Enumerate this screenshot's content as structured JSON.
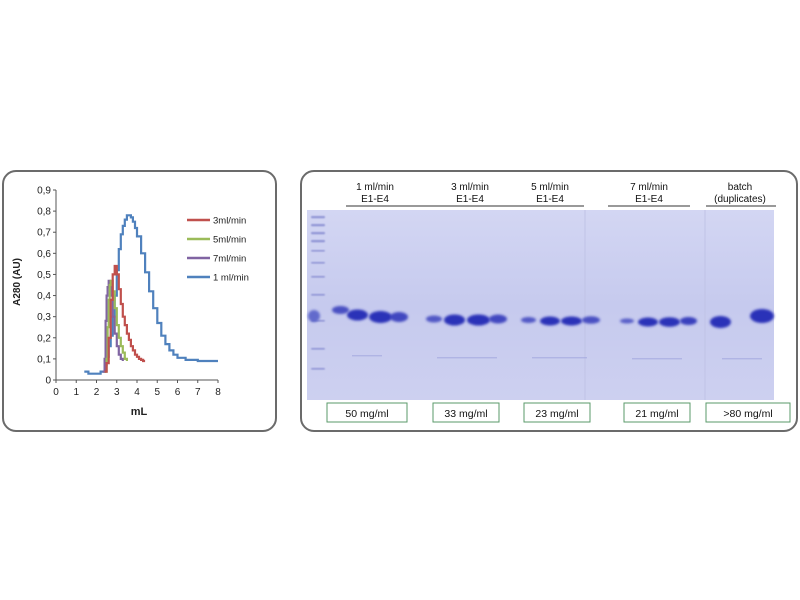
{
  "chart_data": {
    "type": "line",
    "title": "",
    "xlabel": "mL",
    "ylabel": "A280 (AU)",
    "xlim": [
      0,
      8
    ],
    "ylim": [
      0,
      0.9
    ],
    "x_ticks": [
      "0",
      "1",
      "2",
      "3",
      "4",
      "5",
      "6",
      "7",
      "8"
    ],
    "y_ticks": [
      "0",
      "0,1",
      "0,2",
      "0,3",
      "0,4",
      "0,5",
      "0,6",
      "0,7",
      "0,8",
      "0,9"
    ],
    "grid": false,
    "legend_position": "right",
    "series": [
      {
        "name": "3ml/min",
        "color": "#c0504d",
        "points": [
          [
            2.4,
            0.04
          ],
          [
            2.5,
            0.08
          ],
          [
            2.6,
            0.2
          ],
          [
            2.7,
            0.38
          ],
          [
            2.8,
            0.5
          ],
          [
            2.9,
            0.54
          ],
          [
            3.0,
            0.5
          ],
          [
            3.1,
            0.43
          ],
          [
            3.2,
            0.36
          ],
          [
            3.3,
            0.3
          ],
          [
            3.4,
            0.26
          ],
          [
            3.5,
            0.22
          ],
          [
            3.6,
            0.19
          ],
          [
            3.7,
            0.16
          ],
          [
            3.8,
            0.14
          ],
          [
            3.9,
            0.12
          ],
          [
            4.0,
            0.11
          ],
          [
            4.1,
            0.1
          ],
          [
            4.2,
            0.095
          ],
          [
            4.3,
            0.09
          ],
          [
            4.4,
            0.09
          ]
        ]
      },
      {
        "name": "5ml/min",
        "color": "#9bbb59",
        "points": [
          [
            2.4,
            0.04
          ],
          [
            2.5,
            0.1
          ],
          [
            2.55,
            0.25
          ],
          [
            2.6,
            0.38
          ],
          [
            2.65,
            0.45
          ],
          [
            2.7,
            0.47
          ],
          [
            2.8,
            0.42
          ],
          [
            2.9,
            0.34
          ],
          [
            3.0,
            0.26
          ],
          [
            3.1,
            0.2
          ],
          [
            3.2,
            0.16
          ],
          [
            3.3,
            0.13
          ],
          [
            3.4,
            0.1
          ],
          [
            3.5,
            0.09
          ]
        ]
      },
      {
        "name": "7ml/min",
        "color": "#8064a2",
        "points": [
          [
            2.3,
            0.04
          ],
          [
            2.4,
            0.1
          ],
          [
            2.45,
            0.28
          ],
          [
            2.5,
            0.4
          ],
          [
            2.55,
            0.44
          ],
          [
            2.6,
            0.47
          ],
          [
            2.65,
            0.44
          ],
          [
            2.7,
            0.4
          ],
          [
            2.8,
            0.3
          ],
          [
            2.9,
            0.22
          ],
          [
            3.0,
            0.16
          ],
          [
            3.1,
            0.12
          ],
          [
            3.2,
            0.1
          ],
          [
            3.3,
            0.09
          ]
        ]
      },
      {
        "name": "1 ml/min",
        "color": "#4f81bd",
        "points": [
          [
            1.4,
            0.04
          ],
          [
            1.6,
            0.03
          ],
          [
            1.8,
            0.03
          ],
          [
            2.0,
            0.03
          ],
          [
            2.2,
            0.04
          ],
          [
            2.4,
            0.07
          ],
          [
            2.5,
            0.11
          ],
          [
            2.6,
            0.16
          ],
          [
            2.7,
            0.21
          ],
          [
            2.8,
            0.3
          ],
          [
            2.9,
            0.4
          ],
          [
            3.0,
            0.52
          ],
          [
            3.1,
            0.62
          ],
          [
            3.2,
            0.69
          ],
          [
            3.3,
            0.73
          ],
          [
            3.4,
            0.76
          ],
          [
            3.5,
            0.78
          ],
          [
            3.6,
            0.78
          ],
          [
            3.7,
            0.77
          ],
          [
            3.8,
            0.75
          ],
          [
            3.9,
            0.72
          ],
          [
            4.0,
            0.68
          ],
          [
            4.2,
            0.6
          ],
          [
            4.4,
            0.51
          ],
          [
            4.6,
            0.42
          ],
          [
            4.8,
            0.34
          ],
          [
            5.0,
            0.27
          ],
          [
            5.2,
            0.21
          ],
          [
            5.4,
            0.17
          ],
          [
            5.6,
            0.14
          ],
          [
            5.8,
            0.12
          ],
          [
            6.0,
            0.105
          ],
          [
            6.4,
            0.095
          ],
          [
            7.0,
            0.09
          ],
          [
            8.0,
            0.09
          ]
        ]
      }
    ]
  },
  "gel": {
    "lane_groups": [
      {
        "line1": "1 ml/min",
        "line2": "E1-E4",
        "concentration": "50 mg/ml"
      },
      {
        "line1": "3 ml/min",
        "line2": "E1-E4",
        "concentration": "33 mg/ml"
      },
      {
        "line1": "5 ml/min",
        "line2": "E1-E4",
        "concentration": "23 mg/ml"
      },
      {
        "line1": "7 ml/min",
        "line2": "E1-E4",
        "concentration": "21 mg/ml"
      },
      {
        "line1": "batch",
        "line2": "(duplicates)",
        "concentration": ">80 mg/ml"
      }
    ],
    "colors": {
      "gel_bg": "#c9cdef",
      "band": "#2b33b8",
      "panel_border": "#6b6b6b"
    }
  }
}
